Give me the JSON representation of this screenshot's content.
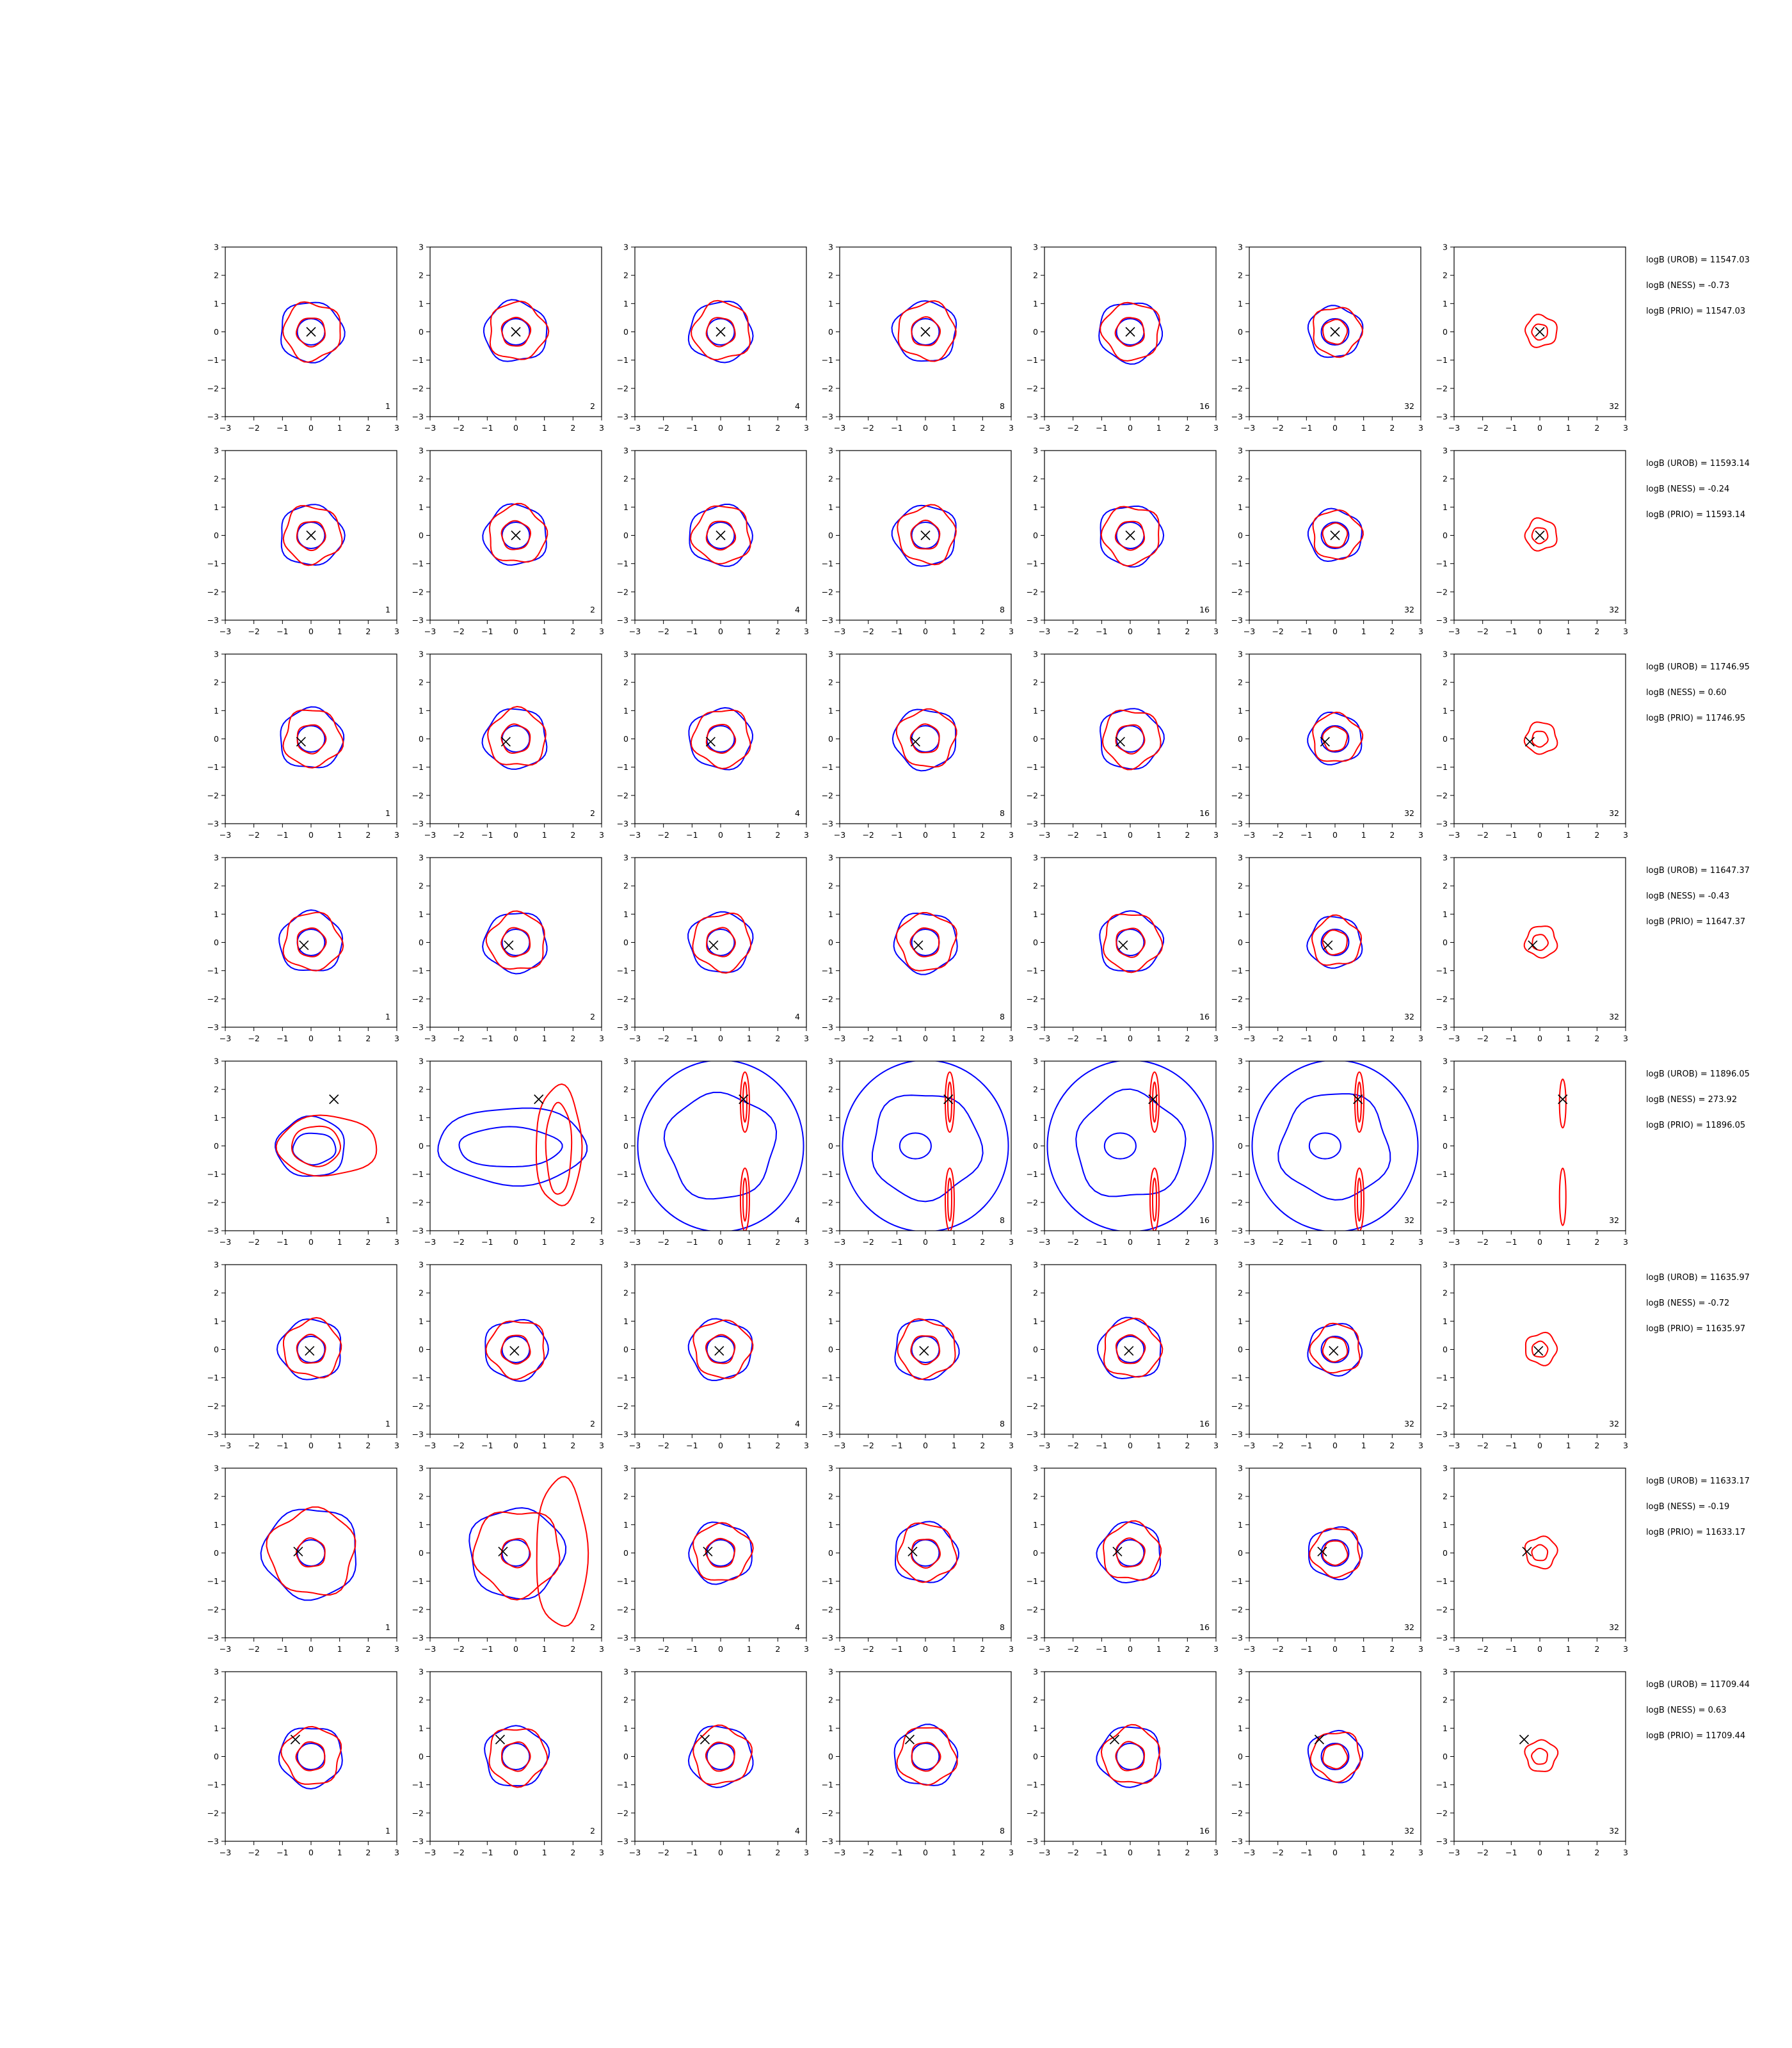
{
  "chart_data": {
    "type": "contour-grid",
    "rows": 8,
    "cols": 7,
    "xlim": [
      -3,
      3
    ],
    "ylim": [
      -3,
      3
    ],
    "xticks": [
      "−3",
      "−2",
      "−1",
      "0",
      "1",
      "2",
      "3"
    ],
    "yticks": [
      "3",
      "2",
      "1",
      "0",
      "−1",
      "−2",
      "−3"
    ],
    "column_labels": [
      "1",
      "2",
      "4",
      "8",
      "16",
      "32",
      "32"
    ],
    "series_colors": {
      "blue": "#0000ff",
      "red": "#ff0000",
      "marker": "#000000"
    },
    "row_stats": [
      {
        "urob": "logB (UROB) = 11547.03",
        "ness": "logB (NESS) = -0.73",
        "prio": "logB (PRIO) = 11547.03",
        "marker": [
          0,
          0
        ]
      },
      {
        "urob": "logB (UROB) = 11593.14",
        "ness": "logB (NESS) = -0.24",
        "prio": "logB (PRIO) = 11593.14",
        "marker": [
          0,
          0
        ]
      },
      {
        "urob": "logB (UROB) = 11746.95",
        "ness": "logB (NESS) = 0.60",
        "prio": "logB (PRIO) = 11746.95",
        "marker": [
          -0.35,
          -0.1
        ]
      },
      {
        "urob": "logB (UROB) = 11647.37",
        "ness": "logB (NESS) = -0.43",
        "prio": "logB (PRIO) = 11647.37",
        "marker": [
          -0.25,
          -0.1
        ]
      },
      {
        "urob": "logB (UROB) = 11896.05",
        "ness": "logB (NESS) = 273.92",
        "prio": "logB (PRIO) = 11896.05",
        "marker": [
          0.8,
          1.65
        ]
      },
      {
        "urob": "logB (UROB) = 11635.97",
        "ness": "logB (NESS) = -0.72",
        "prio": "logB (PRIO) = 11635.97",
        "marker": [
          -0.05,
          -0.05
        ]
      },
      {
        "urob": "logB (UROB) = 11633.17",
        "ness": "logB (NESS) = -0.19",
        "prio": "logB (PRIO) = 11633.17",
        "marker": [
          -0.45,
          0.05
        ]
      },
      {
        "urob": "logB (UROB) = 11709.44",
        "ness": "logB (NESS) = 0.63",
        "prio": "logB (PRIO) = 11709.44",
        "marker": [
          -0.55,
          0.6
        ]
      }
    ]
  }
}
